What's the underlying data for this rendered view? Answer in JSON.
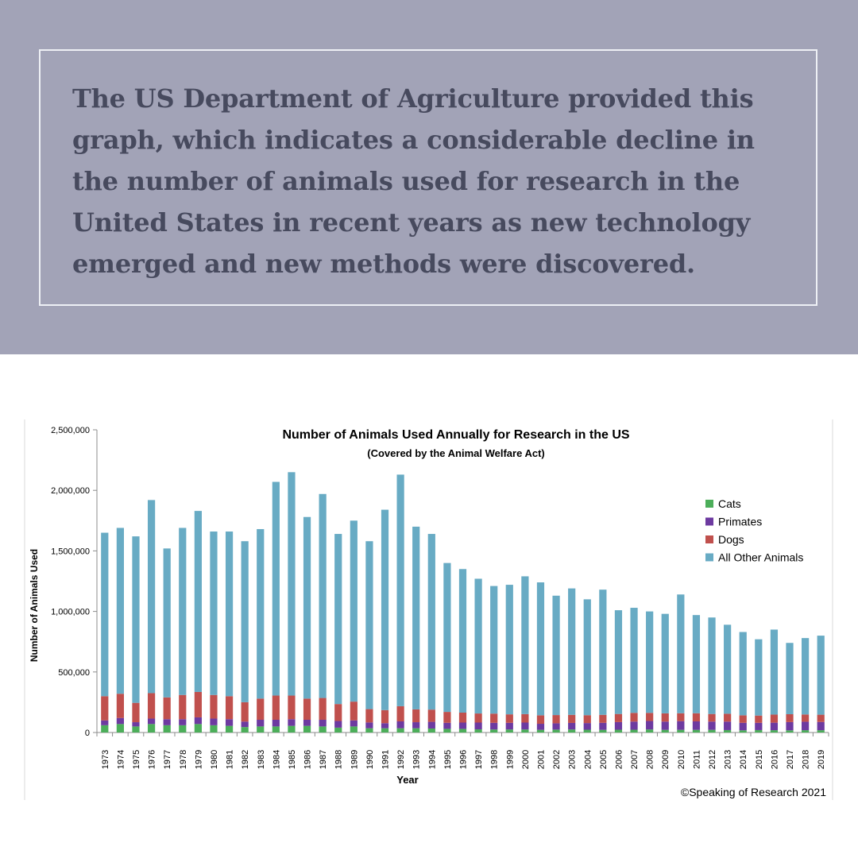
{
  "caption": "The US Department of Agriculture provided this graph, which indicates a considerable decline in the number of animals used for research in the United States in recent years as new technology emerged and new methods were discovered.",
  "colors": {
    "banner": "#a2a3b7",
    "caption_text": "#474a5e",
    "frame_border": "#eef0f5"
  },
  "chart_data": {
    "type": "bar",
    "stacked": true,
    "title": "Number of Animals Used Annually for Research in the US",
    "subtitle": "(Covered by the Animal Welfare Act)",
    "xlabel": "Year",
    "ylabel": "Number of Animals Used",
    "ylim": [
      0,
      2500000
    ],
    "yticks": [
      0,
      500000,
      1000000,
      1500000,
      2000000,
      2500000
    ],
    "ytick_labels": [
      "0",
      "500,000",
      "1,000,000",
      "1,500,000",
      "2,000,000",
      "2,500,000"
    ],
    "legend_position": "right",
    "grid": false,
    "credit": "©Speaking of Research 2021",
    "categories": [
      "1973",
      "1974",
      "1975",
      "1976",
      "1977",
      "1978",
      "1979",
      "1980",
      "1981",
      "1982",
      "1983",
      "1984",
      "1985",
      "1986",
      "1987",
      "1988",
      "1989",
      "1990",
      "1991",
      "1992",
      "1993",
      "1994",
      "1995",
      "1996",
      "1997",
      "1998",
      "1999",
      "2000",
      "2001",
      "2002",
      "2003",
      "2004",
      "2005",
      "2006",
      "2007",
      "2008",
      "2009",
      "2010",
      "2011",
      "2012",
      "2013",
      "2014",
      "2015",
      "2016",
      "2017",
      "2018",
      "2019"
    ],
    "totals": [
      1650000,
      1690000,
      1620000,
      1920000,
      1520000,
      1690000,
      1830000,
      1660000,
      1660000,
      1580000,
      1680000,
      2070000,
      2150000,
      1780000,
      1970000,
      1640000,
      1750000,
      1580000,
      1840000,
      2130000,
      1700000,
      1640000,
      1400000,
      1350000,
      1270000,
      1210000,
      1220000,
      1290000,
      1240000,
      1130000,
      1190000,
      1100000,
      1180000,
      1010000,
      1030000,
      1000000,
      980000,
      1140000,
      970000,
      950000,
      890000,
      830000,
      770000,
      850000,
      740000,
      780000,
      800000
    ],
    "series": [
      {
        "name": "Cats",
        "color": "#4cae5a",
        "values": [
          60000,
          70000,
          50000,
          70000,
          60000,
          60000,
          70000,
          60000,
          55000,
          45000,
          50000,
          50000,
          55000,
          55000,
          50000,
          40000,
          50000,
          35000,
          35000,
          35000,
          35000,
          33000,
          30000,
          30000,
          26000,
          25000,
          25000,
          25000,
          22000,
          24000,
          25000,
          23000,
          22000,
          23000,
          23000,
          25000,
          22000,
          22000,
          22000,
          22000,
          20000,
          18000,
          20000,
          19000,
          18000,
          19000,
          19000
        ]
      },
      {
        "name": "Primates",
        "color": "#6d3aa0",
        "values": [
          40000,
          50000,
          35000,
          45000,
          50000,
          50000,
          55000,
          55000,
          55000,
          45000,
          55000,
          55000,
          55000,
          50000,
          55000,
          55000,
          50000,
          48000,
          42000,
          57000,
          50000,
          55000,
          50000,
          52000,
          56000,
          55000,
          55000,
          57000,
          50000,
          52000,
          54000,
          55000,
          58000,
          63000,
          67000,
          70000,
          68000,
          72000,
          70000,
          68000,
          70000,
          62000,
          60000,
          62000,
          68000,
          70000,
          68000
        ]
      },
      {
        "name": "Dogs",
        "color": "#c0504d",
        "values": [
          200000,
          200000,
          160000,
          210000,
          180000,
          200000,
          210000,
          195000,
          190000,
          160000,
          175000,
          200000,
          195000,
          175000,
          180000,
          140000,
          155000,
          110000,
          108000,
          125000,
          106000,
          101000,
          90000,
          82000,
          75000,
          76000,
          70000,
          70000,
          70000,
          68000,
          67000,
          65000,
          66000,
          67000,
          72000,
          67000,
          68000,
          65000,
          67000,
          63000,
          65000,
          62000,
          60000,
          67000,
          65000,
          60000,
          60000
        ]
      },
      {
        "name": "All Other Animals",
        "color": "#68abc4",
        "values": [
          1350000,
          1370000,
          1375000,
          1595000,
          1230000,
          1380000,
          1495000,
          1350000,
          1360000,
          1330000,
          1400000,
          1765000,
          1845000,
          1500000,
          1685000,
          1405000,
          1495000,
          1387000,
          1655000,
          1913000,
          1509000,
          1451000,
          1230000,
          1186000,
          1113000,
          1054000,
          1070000,
          1138000,
          1098000,
          986000,
          1044000,
          957000,
          1034000,
          857000,
          868000,
          838000,
          822000,
          981000,
          811000,
          797000,
          735000,
          688000,
          630000,
          702000,
          589000,
          631000,
          653000
        ]
      }
    ]
  }
}
